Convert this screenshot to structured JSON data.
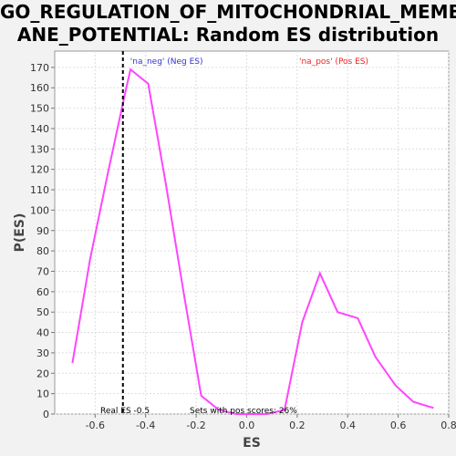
{
  "chart_data": {
    "type": "line",
    "title_lines": [
      "GO_REGULATION_OF_MITOCHONDRIAL_MEMBR",
      "ANE_POTENTIAL: Random ES distribution"
    ],
    "xlabel": "ES",
    "ylabel": "P(ES)",
    "xlim": [
      -0.76,
      0.8
    ],
    "ylim": [
      0,
      178
    ],
    "xticks": [
      -0.6,
      -0.4,
      -0.2,
      0.0,
      0.2,
      0.4,
      0.6,
      0.8
    ],
    "xtick_labels": [
      "-0.6",
      "-0.4",
      "-0.2",
      "0.0",
      "0.2",
      "0.4",
      "0.6",
      "0.8"
    ],
    "yticks": [
      0,
      10,
      20,
      30,
      40,
      50,
      60,
      70,
      80,
      90,
      100,
      110,
      120,
      130,
      140,
      150,
      160,
      170
    ],
    "grid": true,
    "series": [
      {
        "color": "#ff44ff",
        "x": [
          -0.69,
          -0.62,
          -0.55,
          -0.48,
          -0.46,
          -0.39,
          -0.32,
          -0.25,
          -0.18,
          -0.11,
          -0.04,
          0.03,
          0.08,
          0.15,
          0.22,
          0.29,
          0.36,
          0.44,
          0.51,
          0.59,
          0.66,
          0.74
        ],
        "y": [
          25,
          76,
          118,
          158,
          169,
          162,
          113,
          60,
          9,
          2,
          0,
          0,
          0,
          2,
          45,
          69,
          50,
          47,
          28,
          14,
          6,
          3
        ]
      }
    ],
    "real_es": -0.49,
    "annotations": {
      "neg_label": "'na_neg' (Neg ES)",
      "pos_label": "'na_pos' (Pos ES)",
      "real_es_label": "Real ES -0.5",
      "sets_label": "Sets with pos scores: 26%"
    },
    "colors": {
      "neg_label": "#3333cc",
      "pos_label": "#ee2222",
      "line": "#ff44ff",
      "grid": "#dddddd"
    }
  }
}
